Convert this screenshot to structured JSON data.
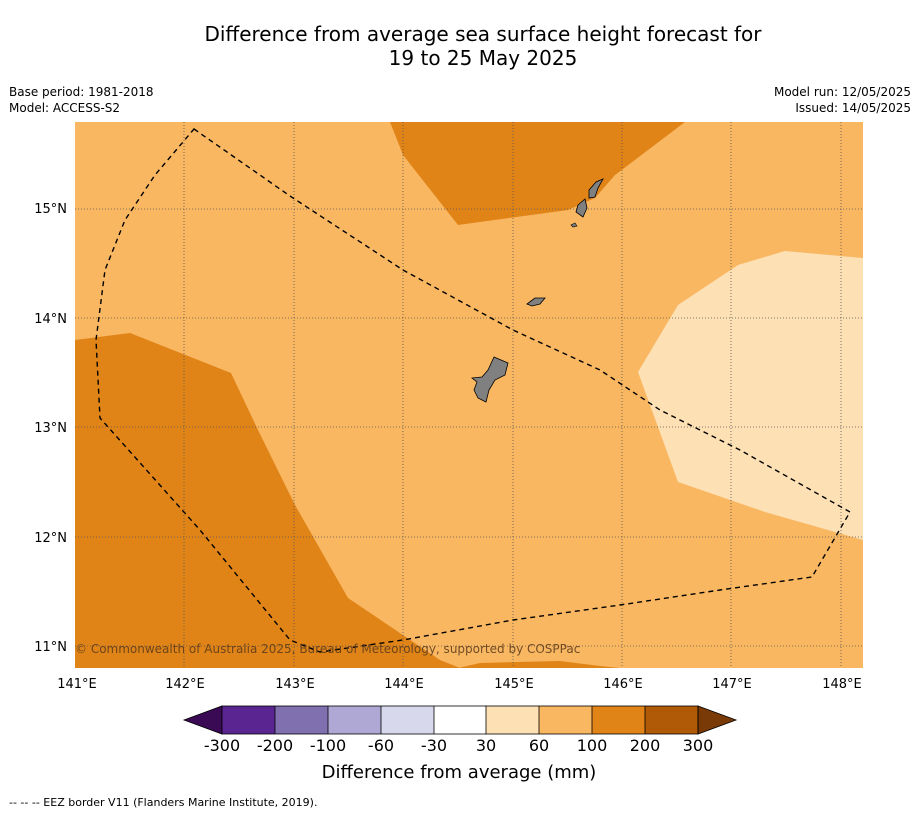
{
  "title": {
    "line1": "Difference from average sea surface height forecast for",
    "line2": "19 to 25 May 2025"
  },
  "meta_left": {
    "base_period": "Base period: 1981-2018",
    "model": "Model: ACCESS-S2"
  },
  "meta_right": {
    "model_run": "Model run: 12/05/2025",
    "issued": "Issued: 14/05/2025"
  },
  "map": {
    "lon_ticks": [
      "141°E",
      "142°E",
      "143°E",
      "144°E",
      "145°E",
      "146°E",
      "147°E",
      "148°E"
    ],
    "lat_ticks": [
      "15°N",
      "14°N",
      "13°N",
      "12°N",
      "11°N"
    ],
    "copyright": "© Commonwealth of Australia 2025, Bureau of Meteorology, supported by COSPPac",
    "colors": {
      "band_100_200": "#e08418",
      "band_60_100": "#f9b762",
      "band_30_60": "#fde0b4",
      "land": "#808080",
      "graticule": "#555555",
      "eez": "#000000"
    }
  },
  "colorbar": {
    "labels": [
      "-300",
      "-200",
      "-100",
      "-60",
      "-30",
      "30",
      "60",
      "100",
      "200",
      "300"
    ],
    "colors": [
      "#3b0a55",
      "#5a2590",
      "#8070b0",
      "#b0a8d4",
      "#d8d8ec",
      "#ffffff",
      "#fde0b4",
      "#f9b762",
      "#e08418",
      "#b05a08",
      "#7a3a08"
    ],
    "title": "Difference from average (mm)"
  },
  "footnote": "--  --  -- EEZ border V11 (Flanders Marine Institute, 2019)."
}
